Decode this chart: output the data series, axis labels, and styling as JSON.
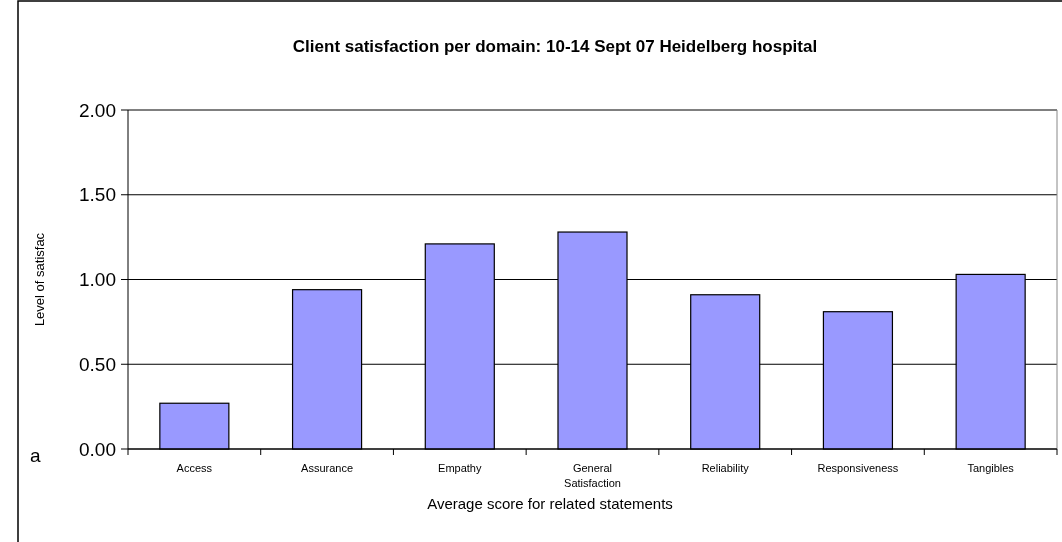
{
  "chart_data": {
    "type": "bar",
    "title": "Client satisfaction per domain: 10-14 Sept 07 Heidelberg hospital",
    "xlabel": "Average score for related statements",
    "ylabel": "Level of satisfac",
    "categories": [
      "Access",
      "Assurance",
      "Empathy",
      "General Satisfaction",
      "Reliability",
      "Responsiveness",
      "Tangibles"
    ],
    "values": [
      0.27,
      0.94,
      1.21,
      1.28,
      0.91,
      0.81,
      1.03
    ],
    "color": "#9999ff",
    "ylim": [
      0,
      2
    ],
    "yticks": [
      {
        "value": 0,
        "label": "0.00"
      },
      {
        "value": 0.5,
        "label": "0.50"
      },
      {
        "value": 1,
        "label": "1.00"
      },
      {
        "value": 1.5,
        "label": "1.50"
      },
      {
        "value": 2,
        "label": "2.00"
      }
    ],
    "grid": "y",
    "annotations": [
      "a"
    ]
  }
}
